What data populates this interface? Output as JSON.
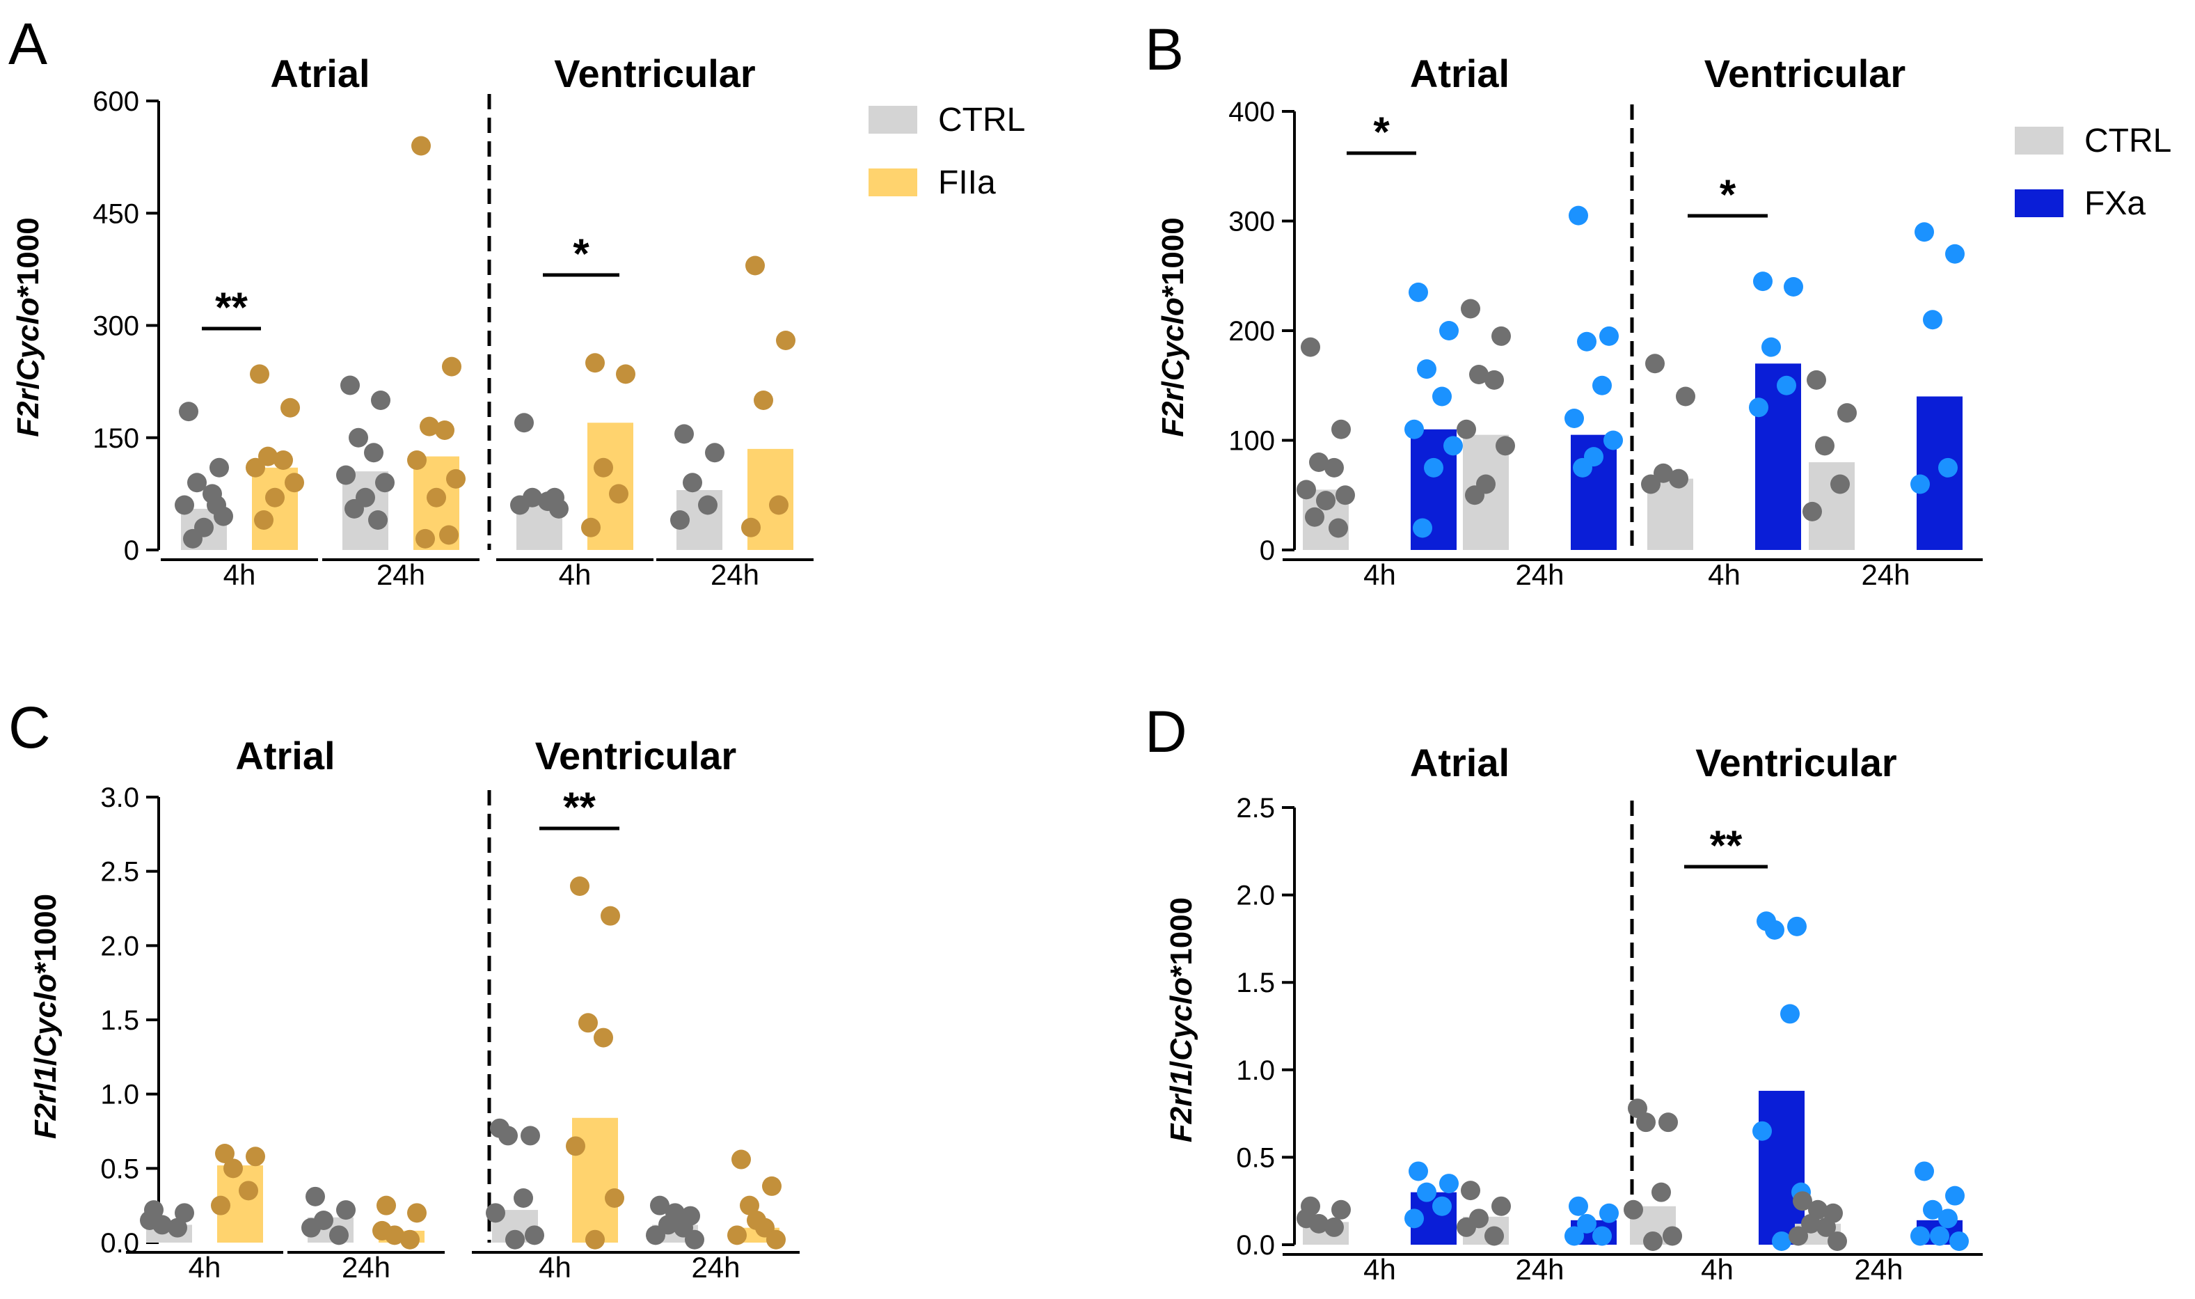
{
  "colors": {
    "ctrl_bar": "#d4d4d4",
    "ctrl_dot": "#707070",
    "fiia_bar": "#ffd36e",
    "fiia_dot": "#c3903b",
    "fxa_bar": "#0a1ed7",
    "fxa_dot": "#1b92ff"
  },
  "panels": [
    {
      "letter": "A",
      "regions": [
        "Atrial",
        "Ventricular"
      ],
      "legend": [
        {
          "label": "CTRL",
          "color": "ctrl_bar"
        },
        {
          "label": "FIIa",
          "color": "fiia_bar"
        }
      ],
      "group_labels": [
        "4h",
        "24h",
        "4h",
        "24h"
      ],
      "sig": [
        "**",
        "",
        "*",
        ""
      ],
      "y_label": {
        "gene": "F2r",
        "sep": "/",
        "ref": "Cyclo",
        "suffix": "*1000"
      },
      "chart_data": {
        "type": "bar",
        "title": "",
        "ylabel": "F2r/Cyclo*1000",
        "ylim": [
          0,
          600
        ],
        "yticks": [
          "0",
          "150",
          "300",
          "450",
          "600"
        ],
        "categories": [
          "Atrial 4h",
          "Atrial 24h",
          "Ventricular 4h",
          "Ventricular 24h"
        ],
        "series": [
          {
            "name": "CTRL",
            "values": [
              55,
              105,
              65,
              80
            ],
            "points": [
              [
                185,
                110,
                90,
                75,
                60,
                45,
                30,
                15,
                60
              ],
              [
                220,
                200,
                150,
                130,
                100,
                90,
                70,
                55,
                40
              ],
              [
                170,
                70,
                70,
                65,
                60,
                55
              ],
              [
                155,
                130,
                90,
                60,
                40
              ]
            ]
          },
          {
            "name": "FIIa",
            "values": [
              110,
              125,
              170,
              135
            ],
            "points": [
              [
                235,
                190,
                125,
                120,
                110,
                90,
                70,
                40
              ],
              [
                540,
                245,
                165,
                160,
                120,
                95,
                70,
                15,
                20
              ],
              [
                250,
                235,
                110,
                75,
                30
              ],
              [
                380,
                280,
                200,
                60,
                30
              ]
            ]
          }
        ]
      }
    },
    {
      "letter": "B",
      "regions": [
        "Atrial",
        "Ventricular"
      ],
      "legend": [
        {
          "label": "CTRL",
          "color": "ctrl_bar"
        },
        {
          "label": "FXa",
          "color": "fxa_bar"
        }
      ],
      "group_labels": [
        "4h",
        "24h",
        "4h",
        "24h"
      ],
      "sig": [
        "*",
        "",
        "*",
        ""
      ],
      "y_label": {
        "gene": "F2r",
        "sep": "/",
        "ref": "Cyclo",
        "suffix": "*1000"
      },
      "chart_data": {
        "type": "bar",
        "title": "",
        "ylabel": "F2r/Cyclo*1000",
        "ylim": [
          0,
          400
        ],
        "yticks": [
          "0",
          "100",
          "200",
          "300",
          "400"
        ],
        "categories": [
          "Atrial 4h",
          "Atrial 24h",
          "Ventricular 4h",
          "Ventricular 24h"
        ],
        "series": [
          {
            "name": "CTRL",
            "values": [
              55,
              105,
              65,
              80
            ],
            "points": [
              [
                185,
                110,
                80,
                75,
                55,
                50,
                45,
                30,
                20
              ],
              [
                220,
                195,
                160,
                155,
                110,
                95,
                60,
                50
              ],
              [
                170,
                140,
                70,
                65,
                60
              ],
              [
                155,
                125,
                95,
                60,
                35
              ]
            ]
          },
          {
            "name": "FXa",
            "values": [
              110,
              105,
              170,
              140
            ],
            "points": [
              [
                235,
                200,
                165,
                140,
                110,
                95,
                75,
                20
              ],
              [
                305,
                195,
                190,
                150,
                120,
                100,
                85,
                75
              ],
              [
                245,
                240,
                185,
                150,
                130
              ],
              [
                290,
                270,
                210,
                75,
                60
              ]
            ]
          }
        ]
      }
    },
    {
      "letter": "C",
      "regions": [
        "Atrial",
        "Ventricular"
      ],
      "legend": [],
      "group_labels": [
        "4h",
        "24h",
        "4h",
        "24h"
      ],
      "sig": [
        "",
        "",
        "**",
        ""
      ],
      "y_label": {
        "gene": "F2rl1",
        "sep": "/",
        "ref": "Cyclo",
        "suffix": "*1000"
      },
      "chart_data": {
        "type": "bar",
        "title": "",
        "ylabel": "F2rl1/Cyclo*1000",
        "ylim": [
          0,
          3.0
        ],
        "yticks": [
          "0.0",
          "0.5",
          "1.0",
          "1.5",
          "2.0",
          "2.5",
          "3.0"
        ],
        "categories": [
          "Atrial 4h",
          "Atrial 24h",
          "Ventricular 4h",
          "Ventricular 24h"
        ],
        "series": [
          {
            "name": "CTRL",
            "values": [
              0.12,
              0.17,
              0.22,
              0.12
            ],
            "points": [
              [
                0.22,
                0.2,
                0.12,
                0.1,
                0.15
              ],
              [
                0.31,
                0.22,
                0.15,
                0.05,
                0.1
              ],
              [
                0.77,
                0.72,
                0.72,
                0.3,
                0.2,
                0.05,
                0.02
              ],
              [
                0.25,
                0.18,
                0.12,
                0.1,
                0.05,
                0.02,
                0.2
              ]
            ]
          },
          {
            "name": "FIIa",
            "values": [
              0.52,
              0.08,
              0.84,
              0.1
            ],
            "points": [
              [
                0.6,
                0.58,
                0.5,
                0.35,
                0.25
              ],
              [
                0.25,
                0.2,
                0.05,
                0.02,
                0.08
              ],
              [
                2.4,
                2.2,
                1.48,
                1.38,
                0.65,
                0.3,
                0.02
              ],
              [
                0.56,
                0.38,
                0.25,
                0.1,
                0.05,
                0.02,
                0.15
              ]
            ]
          }
        ]
      }
    },
    {
      "letter": "D",
      "regions": [
        "Atrial",
        "Ventricular"
      ],
      "legend": [],
      "group_labels": [
        "4h",
        "24h",
        "4h",
        "24h"
      ],
      "sig": [
        "",
        "",
        "**",
        ""
      ],
      "y_label": {
        "gene": "F2rl1",
        "sep": "/",
        "ref": "Cyclo",
        "suffix": "*1000"
      },
      "chart_data": {
        "type": "bar",
        "title": "",
        "ylabel": "F2rl1/Cyclo*1000",
        "ylim": [
          0,
          2.5
        ],
        "yticks": [
          "0.0",
          "0.5",
          "1.0",
          "1.5",
          "2.0",
          "2.5"
        ],
        "categories": [
          "Atrial 4h",
          "Atrial 24h",
          "Ventricular 4h",
          "Ventricular 24h"
        ],
        "series": [
          {
            "name": "CTRL",
            "values": [
              0.13,
              0.16,
              0.22,
              0.12
            ],
            "points": [
              [
                0.22,
                0.2,
                0.12,
                0.1,
                0.15
              ],
              [
                0.31,
                0.22,
                0.15,
                0.05,
                0.1
              ],
              [
                0.78,
                0.7,
                0.7,
                0.3,
                0.2,
                0.05,
                0.02
              ],
              [
                0.25,
                0.18,
                0.12,
                0.1,
                0.05,
                0.02,
                0.2
              ]
            ]
          },
          {
            "name": "FXa",
            "values": [
              0.3,
              0.14,
              0.88,
              0.14
            ],
            "points": [
              [
                0.42,
                0.35,
                0.3,
                0.22,
                0.15
              ],
              [
                0.22,
                0.18,
                0.12,
                0.05,
                0.05
              ],
              [
                1.85,
                1.82,
                1.8,
                1.32,
                0.65,
                0.3,
                0.02
              ],
              [
                0.42,
                0.28,
                0.2,
                0.15,
                0.05,
                0.02,
                0.05
              ]
            ]
          }
        ]
      }
    }
  ]
}
